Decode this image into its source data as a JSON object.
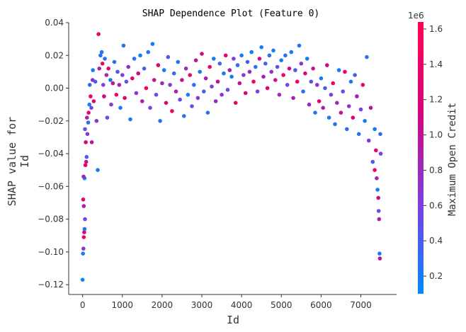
{
  "chart_data": {
    "type": "scatter",
    "title": "SHAP Dependence Plot (Feature 0)",
    "xlabel": "Id",
    "ylabel_lines": [
      "SHAP value for",
      "Id"
    ],
    "xlim": [
      -350,
      7900
    ],
    "ylim": [
      -0.126,
      0.04
    ],
    "x_ticks": [
      0,
      1000,
      2000,
      3000,
      4000,
      5000,
      6000,
      7000
    ],
    "y_ticks": [
      0.04,
      0.02,
      0.0,
      -0.02,
      -0.04,
      -0.06,
      -0.08,
      -0.1,
      -0.12
    ],
    "y_tick_labels": [
      "0.04",
      "0.02",
      "0.00",
      "−0.02",
      "−0.04",
      "−0.06",
      "−0.08",
      "−0.10",
      "−0.12"
    ],
    "grid": false,
    "colorbar": {
      "label": "Maximum Open Credit",
      "exponent": "1e6",
      "range": [
        0.1,
        1.64
      ],
      "ticks": [
        0.2,
        0.4,
        0.6,
        0.8,
        1.0,
        1.2,
        1.4,
        1.6
      ],
      "tick_labels": [
        "0.2",
        "0.4",
        "0.6",
        "0.8",
        "1.0",
        "1.2",
        "1.4",
        "1.6"
      ],
      "colormap": [
        "#008afb",
        "#7b3fe0",
        "#d1067f",
        "#ff0052"
      ]
    },
    "points": [
      [
        0,
        -0.117,
        0.15
      ],
      [
        10,
        -0.101,
        0.2
      ],
      [
        20,
        -0.098,
        0.7
      ],
      [
        30,
        -0.091,
        1.5
      ],
      [
        40,
        -0.088,
        1.1
      ],
      [
        50,
        -0.086,
        0.3
      ],
      [
        60,
        -0.08,
        0.6
      ],
      [
        15,
        -0.068,
        1.3
      ],
      [
        30,
        -0.072,
        0.9
      ],
      [
        50,
        -0.055,
        0.2
      ],
      [
        25,
        -0.054,
        0.8
      ],
      [
        70,
        -0.047,
        1.6
      ],
      [
        90,
        -0.045,
        1.0
      ],
      [
        100,
        -0.042,
        0.4
      ],
      [
        120,
        -0.028,
        0.7
      ],
      [
        140,
        -0.021,
        0.3
      ],
      [
        80,
        -0.033,
        1.2
      ],
      [
        60,
        -0.025,
        0.5
      ],
      [
        150,
        -0.015,
        1.4
      ],
      [
        170,
        -0.01,
        0.2
      ],
      [
        110,
        -0.018,
        0.9
      ],
      [
        200,
        -0.005,
        1.5
      ],
      [
        180,
        0.002,
        0.3
      ],
      [
        220,
        -0.012,
        0.6
      ],
      [
        230,
        -0.033,
        1.0
      ],
      [
        250,
        0.005,
        0.8
      ],
      [
        260,
        0.011,
        0.2
      ],
      [
        280,
        -0.008,
        1.3
      ],
      [
        320,
        0.004,
        0.4
      ],
      [
        350,
        -0.02,
        0.7
      ],
      [
        380,
        -0.05,
        0.2
      ],
      [
        400,
        0.033,
        1.4
      ],
      [
        420,
        0.012,
        0.9
      ],
      [
        450,
        0.02,
        0.3
      ],
      [
        480,
        0.022,
        0.2
      ],
      [
        500,
        0.015,
        1.5
      ],
      [
        520,
        0.002,
        0.6
      ],
      [
        540,
        -0.005,
        1.1
      ],
      [
        560,
        0.018,
        0.3
      ],
      [
        600,
        0.008,
        0.8
      ],
      [
        620,
        -0.018,
        0.5
      ],
      [
        650,
        0.012,
        1.3
      ],
      [
        700,
        0.005,
        0.2
      ],
      [
        720,
        -0.01,
        0.7
      ],
      [
        760,
        0.003,
        1.0
      ],
      [
        800,
        0.016,
        0.3
      ],
      [
        850,
        -0.004,
        1.5
      ],
      [
        880,
        0.01,
        0.4
      ],
      [
        920,
        0.002,
        0.9
      ],
      [
        950,
        -0.012,
        0.2
      ],
      [
        1000,
        0.008,
        0.6
      ],
      [
        1030,
        0.026,
        0.3
      ],
      [
        1060,
        -0.006,
        1.2
      ],
      [
        1100,
        0.004,
        0.5
      ],
      [
        1150,
        0.013,
        0.8
      ],
      [
        1200,
        -0.019,
        0.2
      ],
      [
        1250,
        0.006,
        1.4
      ],
      [
        1300,
        0.018,
        0.3
      ],
      [
        1350,
        -0.003,
        0.7
      ],
      [
        1400,
        0.009,
        1.1
      ],
      [
        1450,
        0.02,
        0.2
      ],
      [
        1500,
        -0.008,
        0.9
      ],
      [
        1550,
        0.012,
        0.4
      ],
      [
        1600,
        0.0,
        1.6
      ],
      [
        1650,
        0.022,
        0.3
      ],
      [
        1700,
        -0.012,
        0.6
      ],
      [
        1760,
        0.027,
        0.2
      ],
      [
        1800,
        0.005,
        1.0
      ],
      [
        1850,
        -0.004,
        0.5
      ],
      [
        1900,
        0.014,
        1.3
      ],
      [
        1950,
        -0.02,
        0.3
      ],
      [
        2000,
        0.003,
        0.8
      ],
      [
        2050,
        0.011,
        0.2
      ],
      [
        2100,
        -0.009,
        1.2
      ],
      [
        2150,
        0.019,
        0.4
      ],
      [
        2200,
        0.002,
        0.7
      ],
      [
        2250,
        -0.014,
        1.5
      ],
      [
        2300,
        0.009,
        0.3
      ],
      [
        2350,
        -0.002,
        0.9
      ],
      [
        2400,
        0.016,
        0.2
      ],
      [
        2450,
        -0.007,
        0.6
      ],
      [
        2500,
        0.005,
        1.1
      ],
      [
        2550,
        -0.017,
        0.3
      ],
      [
        2600,
        0.012,
        0.8
      ],
      [
        2650,
        -0.004,
        0.2
      ],
      [
        2700,
        0.008,
        1.4
      ],
      [
        2750,
        -0.011,
        0.5
      ],
      [
        2800,
        0.002,
        0.3
      ],
      [
        2850,
        0.017,
        1.0
      ],
      [
        2900,
        -0.006,
        0.7
      ],
      [
        2950,
        0.01,
        0.2
      ],
      [
        3000,
        0.021,
        1.2
      ],
      [
        3050,
        -0.002,
        0.4
      ],
      [
        3100,
        0.006,
        0.9
      ],
      [
        3150,
        -0.015,
        0.3
      ],
      [
        3200,
        0.013,
        1.5
      ],
      [
        3250,
        0.001,
        0.6
      ],
      [
        3300,
        0.018,
        0.2
      ],
      [
        3350,
        -0.008,
        0.8
      ],
      [
        3400,
        0.004,
        1.1
      ],
      [
        3450,
        0.015,
        0.3
      ],
      [
        3500,
        -0.004,
        0.7
      ],
      [
        3550,
        0.009,
        0.2
      ],
      [
        3600,
        0.02,
        1.3
      ],
      [
        3650,
        -0.001,
        0.5
      ],
      [
        3700,
        0.011,
        0.9
      ],
      [
        3750,
        0.007,
        0.2
      ],
      [
        3800,
        0.018,
        0.6
      ],
      [
        3850,
        -0.009,
        1.4
      ],
      [
        3900,
        0.014,
        0.3
      ],
      [
        3950,
        0.003,
        1.0
      ],
      [
        4000,
        0.02,
        0.2
      ],
      [
        4050,
        0.008,
        0.7
      ],
      [
        4100,
        -0.003,
        1.2
      ],
      [
        4150,
        0.016,
        0.4
      ],
      [
        4200,
        0.01,
        0.8
      ],
      [
        4250,
        0.022,
        0.2
      ],
      [
        4300,
        0.004,
        1.5
      ],
      [
        4350,
        0.013,
        0.3
      ],
      [
        4400,
        -0.002,
        0.6
      ],
      [
        4450,
        0.018,
        1.1
      ],
      [
        4500,
        0.025,
        0.2
      ],
      [
        4550,
        0.007,
        0.9
      ],
      [
        4600,
        0.015,
        0.4
      ],
      [
        4650,
        0.0,
        1.3
      ],
      [
        4700,
        0.02,
        0.3
      ],
      [
        4750,
        0.01,
        0.7
      ],
      [
        4800,
        0.023,
        0.2
      ],
      [
        4850,
        0.005,
        1.0
      ],
      [
        4900,
        0.013,
        0.5
      ],
      [
        4950,
        -0.004,
        0.8
      ],
      [
        5000,
        0.017,
        0.2
      ],
      [
        5050,
        0.008,
        1.4
      ],
      [
        5100,
        0.02,
        0.3
      ],
      [
        5150,
        0.002,
        0.6
      ],
      [
        5200,
        0.012,
        1.1
      ],
      [
        5250,
        0.022,
        0.2
      ],
      [
        5300,
        -0.006,
        0.9
      ],
      [
        5350,
        0.011,
        0.4
      ],
      [
        5400,
        0.004,
        1.5
      ],
      [
        5450,
        0.026,
        0.2
      ],
      [
        5500,
        0.015,
        0.7
      ],
      [
        5550,
        -0.002,
        0.3
      ],
      [
        5600,
        0.009,
        1.2
      ],
      [
        5650,
        0.018,
        0.2
      ],
      [
        5700,
        -0.01,
        0.8
      ],
      [
        5750,
        0.004,
        0.5
      ],
      [
        5800,
        0.012,
        1.0
      ],
      [
        5850,
        -0.015,
        0.3
      ],
      [
        5900,
        0.002,
        0.7
      ],
      [
        5950,
        -0.008,
        1.3
      ],
      [
        6000,
        0.006,
        0.2
      ],
      [
        6050,
        -0.012,
        0.9
      ],
      [
        6100,
        0.0,
        0.4
      ],
      [
        6150,
        0.014,
        1.1
      ],
      [
        6200,
        -0.018,
        0.2
      ],
      [
        6250,
        -0.004,
        0.6
      ],
      [
        6300,
        0.003,
        1.4
      ],
      [
        6350,
        -0.022,
        0.3
      ],
      [
        6400,
        -0.009,
        0.8
      ],
      [
        6450,
        0.011,
        0.2
      ],
      [
        6500,
        -0.015,
        1.0
      ],
      [
        6550,
        -0.002,
        0.5
      ],
      [
        6600,
        0.01,
        1.5
      ],
      [
        6650,
        -0.025,
        0.3
      ],
      [
        6700,
        -0.011,
        0.7
      ],
      [
        6750,
        0.004,
        0.2
      ],
      [
        6800,
        -0.018,
        1.2
      ],
      [
        6850,
        0.008,
        0.4
      ],
      [
        6900,
        -0.005,
        0.9
      ],
      [
        6950,
        -0.028,
        0.3
      ],
      [
        7000,
        -0.013,
        0.6
      ],
      [
        7050,
        0.002,
        1.4
      ],
      [
        7100,
        -0.02,
        0.2
      ],
      [
        7150,
        0.019,
        0.3
      ],
      [
        7200,
        -0.032,
        0.7
      ],
      [
        7250,
        -0.012,
        1.0
      ],
      [
        7300,
        -0.045,
        0.4
      ],
      [
        7350,
        -0.025,
        0.2
      ],
      [
        7380,
        -0.038,
        1.3
      ],
      [
        7400,
        -0.055,
        0.8
      ],
      [
        7420,
        -0.062,
        0.2
      ],
      [
        7440,
        -0.067,
        1.1
      ],
      [
        7450,
        -0.075,
        0.5
      ],
      [
        7460,
        -0.08,
        0.9
      ],
      [
        7470,
        -0.101,
        0.2
      ],
      [
        7480,
        -0.104,
        1.0
      ],
      [
        7490,
        -0.028,
        0.3
      ],
      [
        7500,
        -0.04,
        0.6
      ],
      [
        7350,
        -0.05,
        1.5
      ]
    ]
  }
}
